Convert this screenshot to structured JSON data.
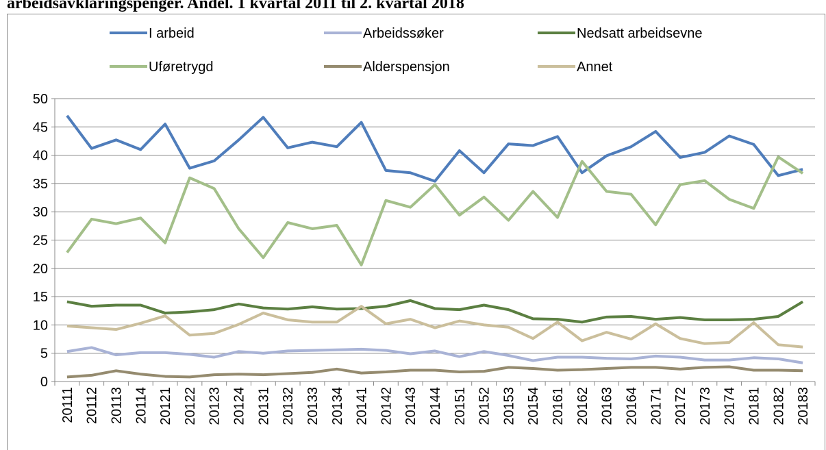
{
  "chart_data": {
    "type": "line",
    "title": "arbeidsavklaringspenger. Andel. 1 kvartal 2011 til 2. kvartal 2018",
    "categories": [
      "20111",
      "20112",
      "20113",
      "20114",
      "20121",
      "20122",
      "20123",
      "20124",
      "20131",
      "20132",
      "20133",
      "20134",
      "20141",
      "20142",
      "20143",
      "20144",
      "20151",
      "20152",
      "20153",
      "20154",
      "20161",
      "20162",
      "20163",
      "20164",
      "20171",
      "20172",
      "20173",
      "20174",
      "20181",
      "20182",
      "20183"
    ],
    "series": [
      {
        "name": "I arbeid",
        "color": "#4f7dbb",
        "values": [
          47,
          41.2,
          42.7,
          41,
          45.5,
          37.7,
          39,
          42.7,
          46.7,
          41.3,
          42.3,
          41.5,
          45.8,
          37.3,
          36.9,
          35.4,
          40.8,
          36.9,
          42,
          41.7,
          43.3,
          36.9,
          39.9,
          41.5,
          44.2,
          39.6,
          40.5,
          43.4,
          41.9,
          36.4,
          37.5
        ]
      },
      {
        "name": "Arbeidssøker",
        "color": "#a9b3d6",
        "values": [
          5.3,
          6,
          4.7,
          5.1,
          5.1,
          4.8,
          4.3,
          5.3,
          5,
          5.4,
          5.5,
          5.6,
          5.7,
          5.5,
          4.9,
          5.4,
          4.4,
          5.3,
          4.6,
          3.7,
          4.3,
          4.3,
          4.1,
          4,
          4.5,
          4.3,
          3.8,
          3.8,
          4.2,
          4,
          3.3
        ]
      },
      {
        "name": "Nedsatt arbeidsevne",
        "color": "#5b7f41",
        "values": [
          14.1,
          13.3,
          13.5,
          13.5,
          12.1,
          12.3,
          12.7,
          13.7,
          13,
          12.8,
          13.2,
          12.8,
          12.9,
          13.3,
          14.3,
          12.9,
          12.7,
          13.5,
          12.7,
          11.1,
          11,
          10.5,
          11.4,
          11.5,
          11,
          11.3,
          10.9,
          10.9,
          11,
          11.5,
          14.1
        ]
      },
      {
        "name": "Uføretrygd",
        "color": "#a3bf89",
        "values": [
          22.8,
          28.7,
          27.9,
          28.9,
          24.5,
          36,
          34.1,
          27,
          21.9,
          28.1,
          27,
          27.6,
          20.6,
          32,
          30.8,
          34.8,
          29.4,
          32.6,
          28.5,
          33.6,
          29,
          38.9,
          33.6,
          33.1,
          27.7,
          34.8,
          35.5,
          32.2,
          30.6,
          39.7,
          36.8
        ]
      },
      {
        "name": "Alderspensjon",
        "color": "#958b6f",
        "values": [
          0.8,
          1.1,
          1.9,
          1.3,
          0.9,
          0.8,
          1.2,
          1.3,
          1.2,
          1.4,
          1.6,
          2.2,
          1.5,
          1.7,
          2,
          2,
          1.7,
          1.8,
          2.5,
          2.3,
          2,
          2.1,
          2.3,
          2.5,
          2.5,
          2.2,
          2.5,
          2.6,
          2,
          2,
          1.9
        ]
      },
      {
        "name": "Annet",
        "color": "#cbbf9c",
        "values": [
          9.8,
          9.5,
          9.2,
          10.3,
          11.6,
          8.2,
          8.5,
          10.1,
          12.1,
          10.9,
          10.5,
          10.5,
          13.3,
          10.2,
          11,
          9.5,
          10.7,
          10,
          9.6,
          7.6,
          10.5,
          7.2,
          8.7,
          7.5,
          10.2,
          7.6,
          6.7,
          6.9,
          10.4,
          6.5,
          6.1
        ]
      }
    ],
    "ylim": [
      0,
      50
    ],
    "yticks": [
      0,
      5,
      10,
      15,
      20,
      25,
      30,
      35,
      40,
      45,
      50
    ],
    "grid": true,
    "legend": "top"
  }
}
